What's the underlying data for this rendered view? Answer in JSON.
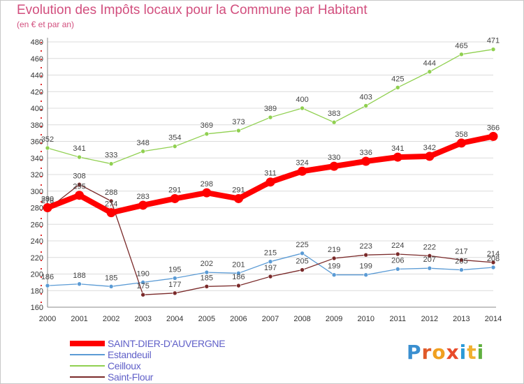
{
  "header": {
    "title": "Evolution des Impôts locaux pour la Commune par Habitant",
    "subtitle": "(en € et par an)"
  },
  "logo": {
    "text": "Proxiti"
  },
  "chart_data": {
    "type": "line",
    "title": "Evolution des Impôts locaux pour la Commune par Habitant",
    "subtitle": "(en € et par an)",
    "x": [
      "2000",
      "2001",
      "2002",
      "2003",
      "2004",
      "2005",
      "2006",
      "2007",
      "2008",
      "2009",
      "2010",
      "2011",
      "2012",
      "2013",
      "2014"
    ],
    "ylim": [
      160,
      480
    ],
    "yticks": [
      160,
      180,
      200,
      220,
      240,
      260,
      280,
      300,
      320,
      340,
      360,
      380,
      400,
      420,
      440,
      460,
      480
    ],
    "grid": "horizontal",
    "legend_position": "bottom-left",
    "series": [
      {
        "name": "SAINT-DIER-D'AUVERGNE",
        "color": "#ff0000",
        "values": [
          280,
          295,
          274,
          283,
          291,
          298,
          291,
          311,
          324,
          330,
          336,
          341,
          342,
          358,
          366
        ],
        "labels": [
          "280",
          "295",
          "274",
          "283",
          "291",
          "298",
          "291",
          "311",
          "324",
          "330",
          "336",
          "341",
          "342",
          "358",
          "366"
        ]
      },
      {
        "name": "Estandeuil",
        "color": "#5b9bd5",
        "values": [
          186,
          188,
          185,
          190,
          195,
          202,
          201,
          215,
          225,
          199,
          199,
          206,
          207,
          205,
          208
        ],
        "labels": [
          "186",
          "188",
          "185",
          "190",
          "195",
          "202",
          "201",
          "215",
          "225",
          "199",
          "199",
          "206",
          "207",
          "205",
          "208"
        ]
      },
      {
        "name": "Ceilloux",
        "color": "#90d050",
        "values": [
          352,
          341,
          333,
          348,
          354,
          369,
          373,
          389,
          400,
          383,
          403,
          425,
          444,
          465,
          471
        ],
        "labels": [
          "352",
          "341",
          "333",
          "348",
          "354",
          "369",
          "373",
          "389",
          "400",
          "383",
          "403",
          "425",
          "444",
          "465",
          "471"
        ]
      },
      {
        "name": "Saint-Flour",
        "color": "#7a2a2a",
        "values": [
          278,
          308,
          288,
          175,
          177,
          185,
          186,
          197,
          205,
          219,
          223,
          224,
          222,
          217,
          214
        ],
        "labels": [
          "278",
          "308",
          "288",
          "175",
          "177",
          "185",
          "186",
          "197",
          "205",
          "219",
          "223",
          "224",
          "222",
          "217",
          "214"
        ]
      }
    ]
  }
}
